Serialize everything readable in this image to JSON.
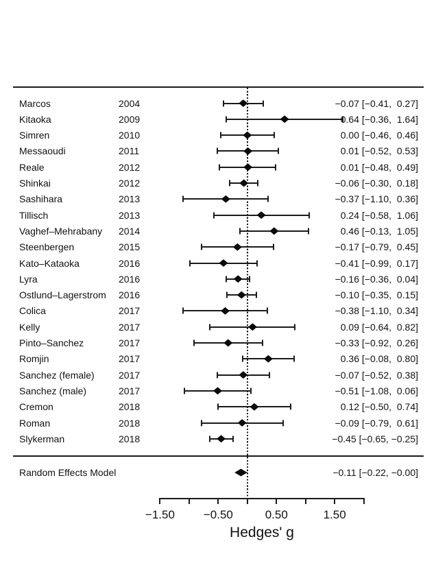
{
  "chart_data": {
    "type": "forest",
    "xlabel": "Hedges' g",
    "effect_measure": "Hedges' g",
    "axis": {
      "range": [
        -1.5,
        2.0
      ],
      "zero_reference_line": 0.0,
      "ticks": [
        {
          "v": -1.5,
          "label": "−1.50"
        },
        {
          "v": -1.0,
          "label": ""
        },
        {
          "v": -0.5,
          "label": "−0.50"
        },
        {
          "v": 0.0,
          "label": ""
        },
        {
          "v": 0.5,
          "label": "0.50"
        },
        {
          "v": 1.0,
          "label": ""
        },
        {
          "v": 1.5,
          "label": "1.50"
        },
        {
          "v": 2.0,
          "label": ""
        }
      ]
    },
    "studies": [
      {
        "name": "Marcos",
        "year": "2004",
        "g": -0.07,
        "lb": -0.41,
        "ub": 0.27,
        "label": "−0.07 [−0.41,  0.27]"
      },
      {
        "name": "Kitaoka",
        "year": "2009",
        "g": 0.64,
        "lb": -0.36,
        "ub": 1.64,
        "label": "0.64 [−0.36,  1.64]"
      },
      {
        "name": "Simren",
        "year": "2010",
        "g": 0.0,
        "lb": -0.46,
        "ub": 0.46,
        "label": "0.00 [−0.46,  0.46]"
      },
      {
        "name": "Messaoudi",
        "year": "2011",
        "g": 0.01,
        "lb": -0.52,
        "ub": 0.53,
        "label": "0.01 [−0.52,  0.53]"
      },
      {
        "name": "Reale",
        "year": "2012",
        "g": 0.01,
        "lb": -0.48,
        "ub": 0.49,
        "label": "0.01 [−0.48,  0.49]"
      },
      {
        "name": "Shinkai",
        "year": "2012",
        "g": -0.06,
        "lb": -0.3,
        "ub": 0.18,
        "label": "−0.06 [−0.30,  0.18]"
      },
      {
        "name": "Sashihara",
        "year": "2013",
        "g": -0.37,
        "lb": -1.1,
        "ub": 0.36,
        "label": "−0.37 [−1.10,  0.36]"
      },
      {
        "name": "Tillisch",
        "year": "2013",
        "g": 0.24,
        "lb": -0.58,
        "ub": 1.06,
        "label": "0.24 [−0.58,  1.06]"
      },
      {
        "name": "Vaghef–Mehrabany",
        "year": "2014",
        "g": 0.46,
        "lb": -0.13,
        "ub": 1.05,
        "label": "0.46 [−0.13,  1.05]"
      },
      {
        "name": "Steenbergen",
        "year": "2015",
        "g": -0.17,
        "lb": -0.79,
        "ub": 0.45,
        "label": "−0.17 [−0.79,  0.45]"
      },
      {
        "name": "Kato–Kataoka",
        "year": "2016",
        "g": -0.41,
        "lb": -0.99,
        "ub": 0.17,
        "label": "−0.41 [−0.99,  0.17]"
      },
      {
        "name": "Lyra",
        "year": "2016",
        "g": -0.16,
        "lb": -0.36,
        "ub": 0.04,
        "label": "−0.16 [−0.36,  0.04]"
      },
      {
        "name": "Ostlund–Lagerstrom",
        "year": "2016",
        "g": -0.1,
        "lb": -0.35,
        "ub": 0.15,
        "label": "−0.10 [−0.35,  0.15]"
      },
      {
        "name": "Colica",
        "year": "2017",
        "g": -0.38,
        "lb": -1.1,
        "ub": 0.34,
        "label": "−0.38 [−1.10,  0.34]"
      },
      {
        "name": "Kelly",
        "year": "2017",
        "g": 0.09,
        "lb": -0.64,
        "ub": 0.82,
        "label": "0.09 [−0.64,  0.82]"
      },
      {
        "name": "Pinto–Sanchez",
        "year": "2017",
        "g": -0.33,
        "lb": -0.92,
        "ub": 0.26,
        "label": "−0.33 [−0.92,  0.26]"
      },
      {
        "name": "Romjin",
        "year": "2017",
        "g": 0.36,
        "lb": -0.08,
        "ub": 0.8,
        "label": "0.36 [−0.08,  0.80]"
      },
      {
        "name": "Sanchez (female)",
        "year": "2017",
        "g": -0.07,
        "lb": -0.52,
        "ub": 0.38,
        "label": "−0.07 [−0.52,  0.38]"
      },
      {
        "name": "Sanchez (male)",
        "year": "2017",
        "g": -0.51,
        "lb": -1.08,
        "ub": 0.06,
        "label": "−0.51 [−1.08,  0.06]"
      },
      {
        "name": "Cremon",
        "year": "2018",
        "g": 0.12,
        "lb": -0.5,
        "ub": 0.74,
        "label": "0.12 [−0.50,  0.74]"
      },
      {
        "name": "Roman",
        "year": "2018",
        "g": -0.09,
        "lb": -0.79,
        "ub": 0.61,
        "label": "−0.09 [−0.79,  0.61]"
      },
      {
        "name": "Slykerman",
        "year": "2018",
        "g": -0.45,
        "lb": -0.65,
        "ub": -0.25,
        "label": "−0.45 [−0.65, −0.25]"
      }
    ],
    "summary": {
      "name": "Random Effects Model",
      "g": -0.11,
      "lb": -0.22,
      "ub": 0.0,
      "label": "−0.11 [−0.22, −0.00]"
    }
  },
  "colors": {
    "ink": "#1a1a1a",
    "background": "#ffffff"
  }
}
